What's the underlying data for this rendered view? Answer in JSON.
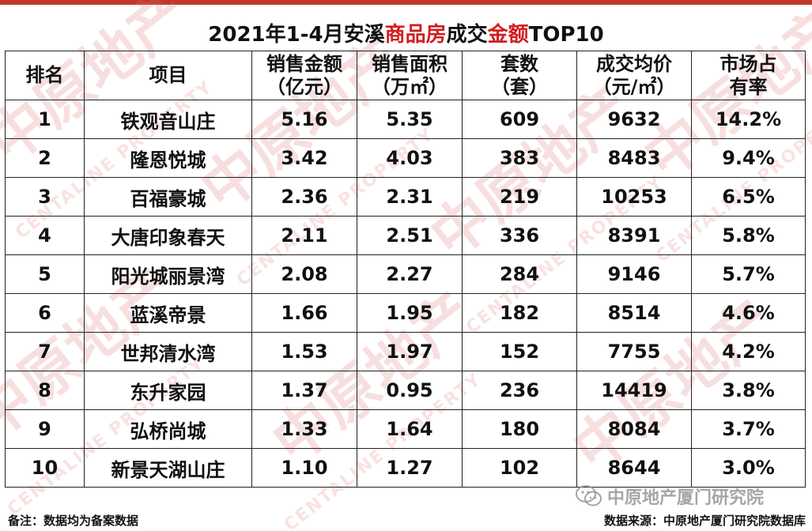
{
  "title": {
    "prefix": "2021年1-4月安溪",
    "highlight1": "商品房",
    "middle": "成交",
    "highlight2": "金额",
    "suffix": "TOP10",
    "highlight_color": "#d11f1f"
  },
  "headers": {
    "rank": "排名",
    "project": "项目",
    "sales_amount_1": "销售金额",
    "sales_amount_2": "（亿元）",
    "sales_area_1": "销售面积",
    "sales_area_2": "（万㎡）",
    "units_1": "套数",
    "units_2": "（套）",
    "avg_price_1": "成交均价",
    "avg_price_2": "（元/㎡）",
    "share_1": "市场占",
    "share_2": "有率"
  },
  "rows": [
    {
      "rank": "1",
      "project": "铁观音山庄",
      "amount": "5.16",
      "area": "5.35",
      "units": "609",
      "price": "9632",
      "share": "14.2%"
    },
    {
      "rank": "2",
      "project": "隆恩悦城",
      "amount": "3.42",
      "area": "4.03",
      "units": "383",
      "price": "8483",
      "share": "9.4%"
    },
    {
      "rank": "3",
      "project": "百福豪城",
      "amount": "2.36",
      "area": "2.31",
      "units": "219",
      "price": "10253",
      "share": "6.5%"
    },
    {
      "rank": "4",
      "project": "大唐印象春天",
      "amount": "2.11",
      "area": "2.51",
      "units": "336",
      "price": "8391",
      "share": "5.8%"
    },
    {
      "rank": "5",
      "project": "阳光城丽景湾",
      "amount": "2.08",
      "area": "2.27",
      "units": "284",
      "price": "9146",
      "share": "5.7%"
    },
    {
      "rank": "6",
      "project": "蓝溪帝景",
      "amount": "1.66",
      "area": "1.95",
      "units": "182",
      "price": "8514",
      "share": "4.6%"
    },
    {
      "rank": "7",
      "project": "世邦清水湾",
      "amount": "1.53",
      "area": "1.97",
      "units": "152",
      "price": "7755",
      "share": "4.2%"
    },
    {
      "rank": "8",
      "project": "东升家园",
      "amount": "1.37",
      "area": "0.95",
      "units": "236",
      "price": "14419",
      "share": "3.8%"
    },
    {
      "rank": "9",
      "project": "弘桥尚城",
      "amount": "1.33",
      "area": "1.64",
      "units": "180",
      "price": "8084",
      "share": "3.7%"
    },
    {
      "rank": "10",
      "project": "新景天湖山庄",
      "amount": "1.10",
      "area": "1.27",
      "units": "102",
      "price": "8644",
      "share": "3.0%"
    }
  ],
  "footer": {
    "note": "备注：数据均为备案数据",
    "source": "数据来源：中原地产厦门研究院数据库",
    "wechat_label": "中原地产厦门研究院"
  },
  "watermark": {
    "text": "中原地产",
    "sub": "CENTALINE PROPERTY",
    "seal": "原"
  },
  "colors": {
    "accent": "#c0392b",
    "watermark": "#e16e6e"
  }
}
